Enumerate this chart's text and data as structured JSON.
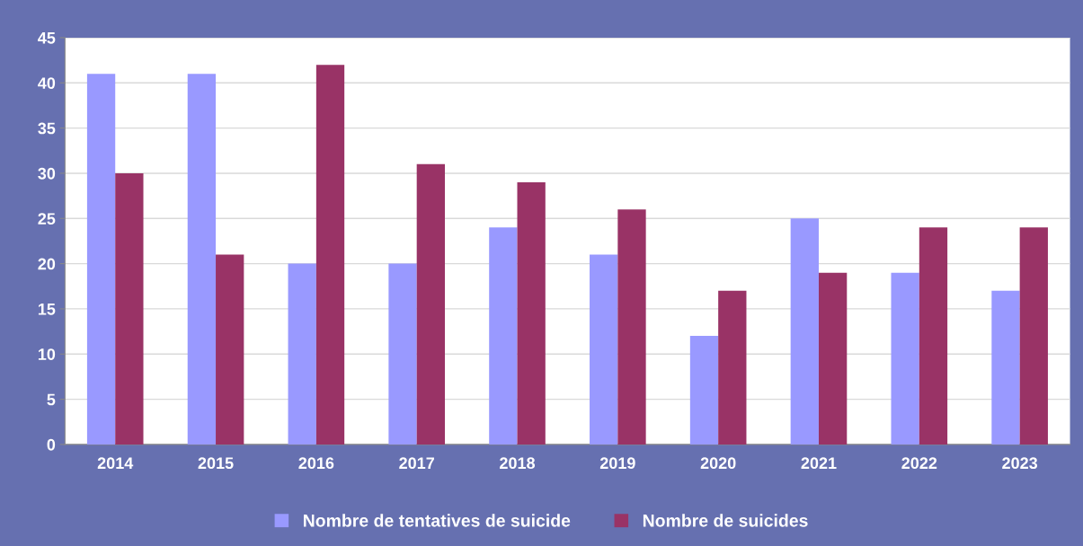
{
  "chart_data": {
    "type": "bar",
    "categories": [
      "2014",
      "2015",
      "2016",
      "2017",
      "2018",
      "2019",
      "2020",
      "2021",
      "2022",
      "2023"
    ],
    "series": [
      {
        "name": "Nombre de tentatives de suicide",
        "color": "#9999ff",
        "values": [
          41,
          41,
          20,
          20,
          24,
          21,
          12,
          25,
          19,
          17
        ]
      },
      {
        "name": "Nombre de suicides",
        "color": "#993366",
        "values": [
          30,
          21,
          42,
          31,
          29,
          26,
          17,
          19,
          24,
          24
        ]
      }
    ],
    "ylim": [
      0,
      45
    ],
    "yticks": [
      0,
      5,
      10,
      15,
      20,
      25,
      30,
      35,
      40,
      45
    ],
    "grid": "y",
    "legend": "bottom"
  }
}
